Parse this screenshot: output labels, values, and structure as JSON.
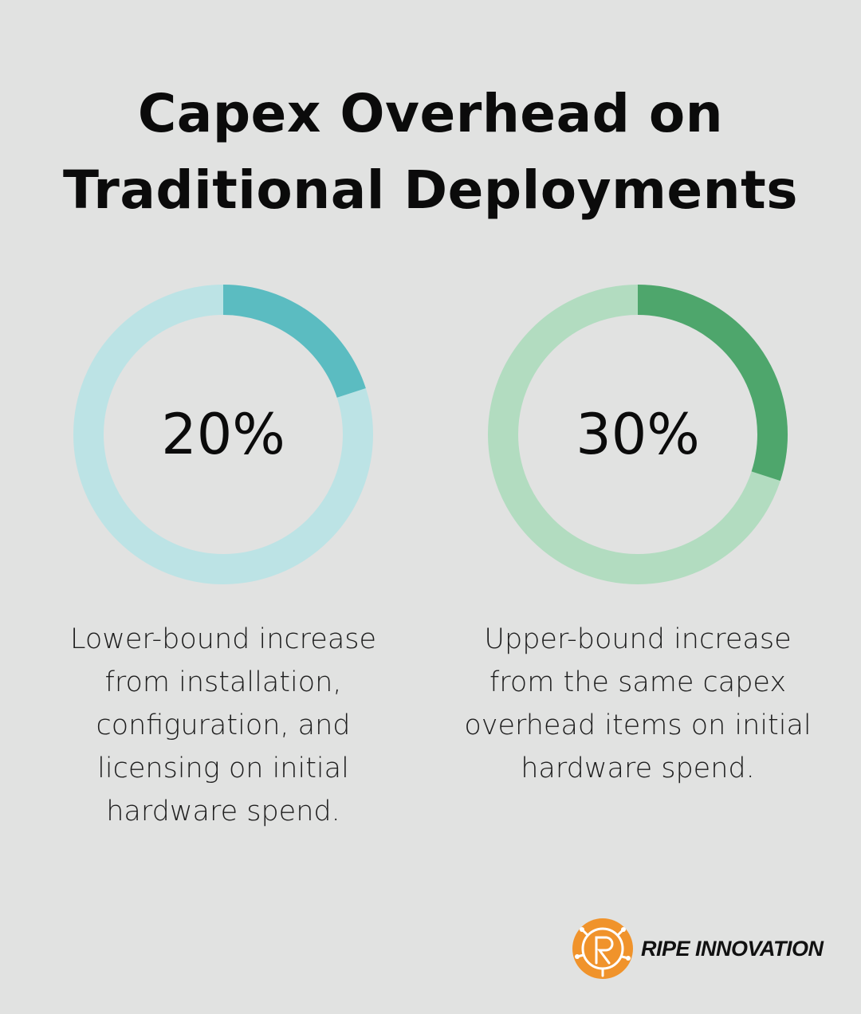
{
  "title": {
    "line1": "Capex Overhead on",
    "line2": "Traditional Deployments"
  },
  "chart_data": [
    {
      "type": "pie",
      "value_label": "20%",
      "value": 20,
      "max": 100,
      "description": "Lower-bound increase from installation, configuration, and licensing on initial hardware spend.",
      "colors": {
        "fill": "#5bbcc1",
        "track": "#bce3e5"
      }
    },
    {
      "type": "pie",
      "value_label": "30%",
      "value": 30,
      "max": 100,
      "description": "Upper-bound increase from the same capex overhead items on initial hardware spend.",
      "colors": {
        "fill": "#4ea66c",
        "track": "#b2dcc0"
      }
    }
  ],
  "brand": {
    "name": "RIPE INNOVATION",
    "icon": "ripe-innovation-logo-icon",
    "color": "#f0932b"
  }
}
